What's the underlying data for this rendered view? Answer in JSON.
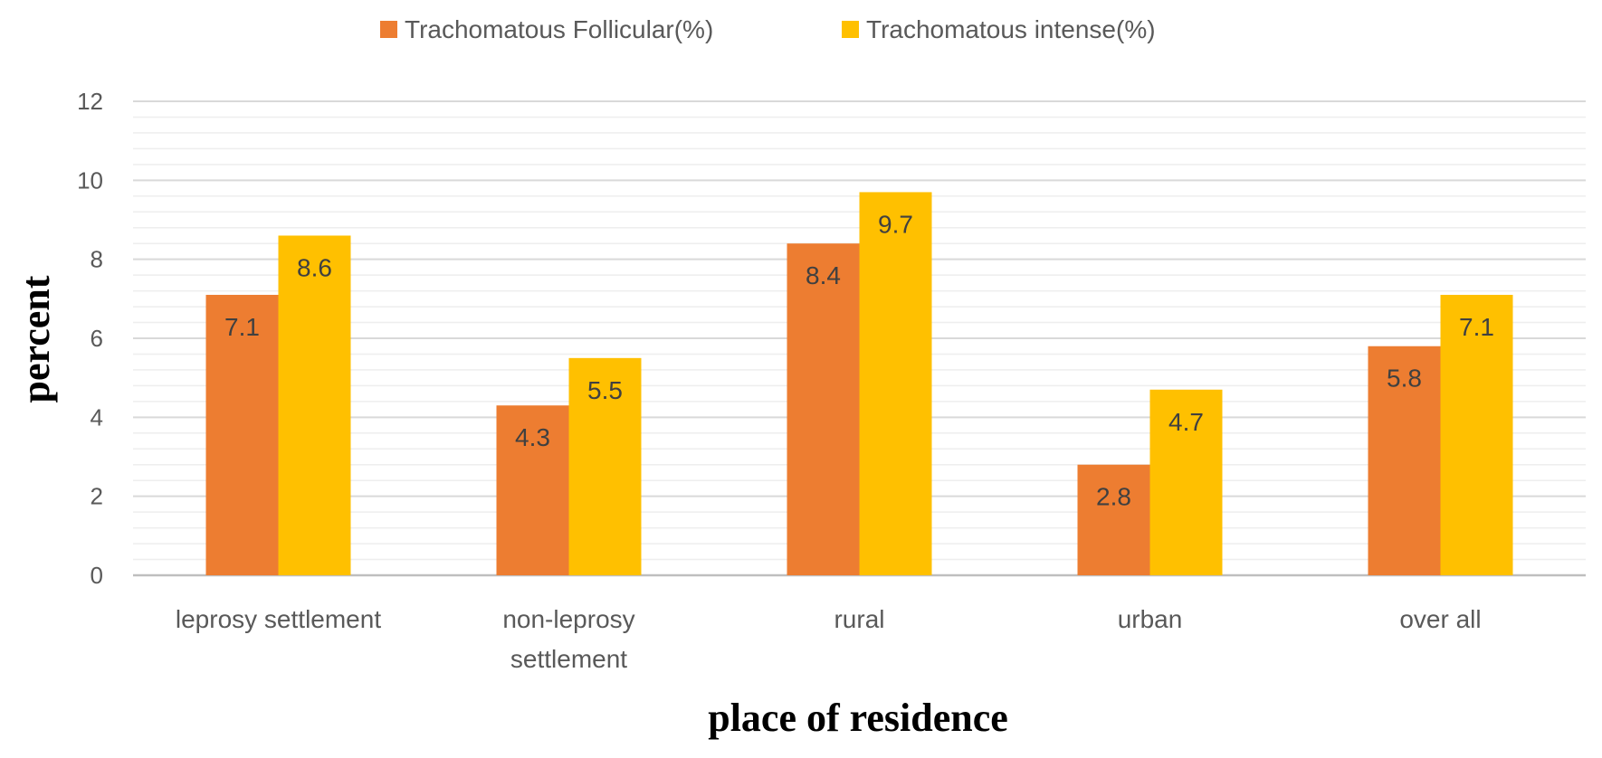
{
  "chart_data": {
    "type": "bar",
    "title": "",
    "xlabel": "place of residence",
    "ylabel": "percent",
    "ylim": [
      0,
      12
    ],
    "yticks": [
      0,
      2,
      4,
      6,
      8,
      10,
      12
    ],
    "minor_grid_step": 0.4,
    "grid": true,
    "legend_position": "top",
    "categories": [
      [
        "leprosy settlement"
      ],
      [
        "non-leprosy",
        "settlement"
      ],
      [
        "rural"
      ],
      [
        "urban"
      ],
      [
        "over all"
      ]
    ],
    "series": [
      {
        "name": "Trachomatous Follicular(%)",
        "color": "#ED7D31",
        "values": [
          7.1,
          4.3,
          8.4,
          2.8,
          5.8
        ]
      },
      {
        "name": "Trachomatous intense(%)",
        "color": "#FFC000",
        "values": [
          8.6,
          5.5,
          9.7,
          4.7,
          7.1
        ]
      }
    ],
    "colors": {
      "major_grid": "#D9D9D9",
      "minor_grid": "#EEEEEE",
      "axis_line": "#BFBFBF"
    }
  }
}
